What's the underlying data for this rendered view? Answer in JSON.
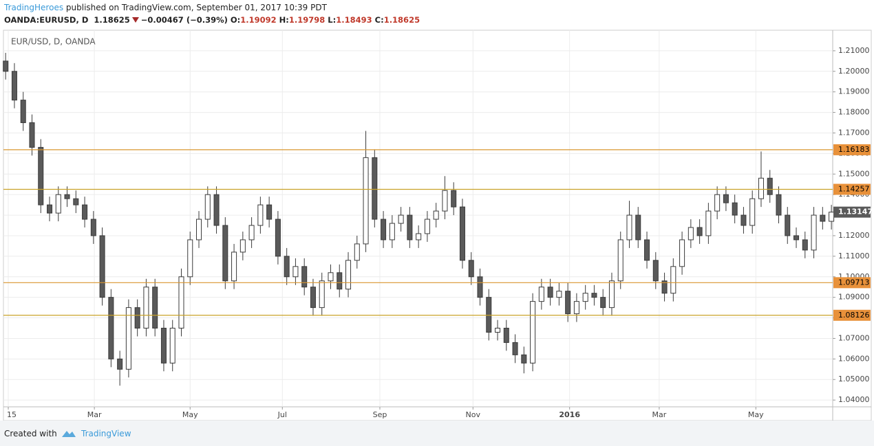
{
  "header": {
    "author": "TradingHeroes",
    "published": "published on TradingView.com, September 01, 2017 10:39 PDT",
    "symbol": "OANDA:EURUSD, D",
    "last": "1.18625",
    "change": "−0.00467 (−0.39%)",
    "ohlc": [
      {
        "label": "O:",
        "value": "1.19092"
      },
      {
        "label": "H:",
        "value": "1.19798"
      },
      {
        "label": "L:",
        "value": "1.18493"
      },
      {
        "label": "C:",
        "value": "1.18625"
      }
    ]
  },
  "footer": {
    "created": "Created with",
    "brand": "TradingView"
  },
  "chart_data": {
    "type": "candlestick",
    "title": "EUR/USD, D, OANDA",
    "open": [
      1.205,
      1.2,
      1.186,
      1.175,
      1.163,
      1.135,
      1.131,
      1.14,
      1.138,
      1.135,
      1.128,
      1.12,
      1.09,
      1.06,
      1.055,
      1.085,
      1.075,
      1.095,
      1.075,
      1.058,
      1.075,
      1.1,
      1.118,
      1.128,
      1.14,
      1.125,
      1.098,
      1.112,
      1.118,
      1.125,
      1.135,
      1.128,
      1.11,
      1.1,
      1.105,
      1.095,
      1.085,
      1.098,
      1.102,
      1.094,
      1.108,
      1.116,
      1.158,
      1.128,
      1.118,
      1.126,
      1.13,
      1.118,
      1.121,
      1.128,
      1.132,
      1.142,
      1.134,
      1.108,
      1.1,
      1.09,
      1.073,
      1.075,
      1.068,
      1.062,
      1.058,
      1.088,
      1.095,
      1.09,
      1.093,
      1.082,
      1.088,
      1.092,
      1.09,
      1.085,
      1.098,
      1.118,
      1.13,
      1.118,
      1.108,
      1.098,
      1.092,
      1.105,
      1.118,
      1.124,
      1.12,
      1.132,
      1.14,
      1.136,
      1.13,
      1.125,
      1.138,
      1.148,
      1.14,
      1.13,
      1.12,
      1.118,
      1.113,
      1.13,
      1.127
    ],
    "high": [
      1.209,
      1.204,
      1.19,
      1.179,
      1.167,
      1.139,
      1.144,
      1.144,
      1.142,
      1.139,
      1.132,
      1.124,
      1.094,
      1.064,
      1.089,
      1.089,
      1.099,
      1.099,
      1.079,
      1.079,
      1.104,
      1.122,
      1.132,
      1.144,
      1.144,
      1.129,
      1.116,
      1.122,
      1.129,
      1.139,
      1.139,
      1.132,
      1.114,
      1.109,
      1.109,
      1.099,
      1.102,
      1.106,
      1.106,
      1.112,
      1.12,
      1.171,
      1.162,
      1.132,
      1.13,
      1.134,
      1.134,
      1.125,
      1.132,
      1.136,
      1.149,
      1.146,
      1.138,
      1.112,
      1.104,
      1.094,
      1.079,
      1.079,
      1.072,
      1.066,
      1.092,
      1.099,
      1.099,
      1.097,
      1.097,
      1.092,
      1.096,
      1.096,
      1.094,
      1.102,
      1.122,
      1.137,
      1.134,
      1.122,
      1.112,
      1.102,
      1.109,
      1.122,
      1.128,
      1.128,
      1.136,
      1.144,
      1.144,
      1.14,
      1.134,
      1.142,
      1.161,
      1.152,
      1.144,
      1.134,
      1.124,
      1.122,
      1.134,
      1.134,
      1.135
    ],
    "low": [
      1.196,
      1.182,
      1.171,
      1.159,
      1.131,
      1.127,
      1.127,
      1.134,
      1.131,
      1.124,
      1.116,
      1.086,
      1.056,
      1.047,
      1.051,
      1.071,
      1.071,
      1.071,
      1.054,
      1.054,
      1.071,
      1.096,
      1.114,
      1.124,
      1.121,
      1.094,
      1.094,
      1.108,
      1.114,
      1.121,
      1.124,
      1.106,
      1.096,
      1.096,
      1.091,
      1.081,
      1.081,
      1.094,
      1.09,
      1.09,
      1.104,
      1.112,
      1.124,
      1.114,
      1.114,
      1.122,
      1.114,
      1.114,
      1.117,
      1.124,
      1.128,
      1.13,
      1.104,
      1.096,
      1.086,
      1.069,
      1.069,
      1.064,
      1.058,
      1.053,
      1.054,
      1.084,
      1.086,
      1.086,
      1.078,
      1.078,
      1.084,
      1.086,
      1.081,
      1.081,
      1.094,
      1.114,
      1.114,
      1.104,
      1.094,
      1.088,
      1.088,
      1.101,
      1.114,
      1.116,
      1.116,
      1.128,
      1.132,
      1.126,
      1.121,
      1.121,
      1.134,
      1.136,
      1.126,
      1.116,
      1.114,
      1.109,
      1.109,
      1.123,
      1.123
    ],
    "close": [
      1.2,
      1.186,
      1.175,
      1.163,
      1.135,
      1.131,
      1.14,
      1.138,
      1.135,
      1.128,
      1.12,
      1.09,
      1.06,
      1.055,
      1.085,
      1.075,
      1.095,
      1.075,
      1.058,
      1.075,
      1.1,
      1.118,
      1.128,
      1.14,
      1.125,
      1.098,
      1.112,
      1.118,
      1.125,
      1.135,
      1.128,
      1.11,
      1.1,
      1.105,
      1.095,
      1.085,
      1.098,
      1.102,
      1.094,
      1.108,
      1.116,
      1.158,
      1.128,
      1.118,
      1.126,
      1.13,
      1.118,
      1.121,
      1.128,
      1.132,
      1.142,
      1.134,
      1.108,
      1.1,
      1.09,
      1.073,
      1.075,
      1.068,
      1.062,
      1.058,
      1.088,
      1.095,
      1.09,
      1.093,
      1.082,
      1.088,
      1.092,
      1.09,
      1.085,
      1.098,
      1.118,
      1.13,
      1.118,
      1.108,
      1.098,
      1.092,
      1.105,
      1.118,
      1.124,
      1.12,
      1.132,
      1.14,
      1.136,
      1.13,
      1.125,
      1.138,
      1.148,
      1.14,
      1.13,
      1.12,
      1.118,
      1.113,
      1.13,
      1.127,
      1.13147
    ],
    "up_color": "#ffffff",
    "down_color": "#5a5a5a",
    "outline": "#3a3a3a",
    "xlim": [
      -0.25,
      94.15
    ],
    "xticks": [
      {
        "value": 0.3,
        "label": "15"
      },
      {
        "value": 10.1,
        "label": "Mar"
      },
      {
        "value": 21.0,
        "label": "May"
      },
      {
        "value": 31.5,
        "label": "Jul"
      },
      {
        "value": 42.6,
        "label": "Sep"
      },
      {
        "value": 53.2,
        "label": "Nov"
      },
      {
        "value": 64.2,
        "label": "2016"
      },
      {
        "value": 74.4,
        "label": "Mar"
      },
      {
        "value": 85.4,
        "label": "May"
      }
    ],
    "ylim": [
      1.0367,
      1.22
    ],
    "yticks": [
      {
        "value": 1.04,
        "label": "1.04000"
      },
      {
        "value": 1.05,
        "label": "1.05000"
      },
      {
        "value": 1.06,
        "label": "1.06000"
      },
      {
        "value": 1.07,
        "label": "1.07000"
      },
      {
        "value": 1.08,
        "label": "1.08000"
      },
      {
        "value": 1.09,
        "label": "1.09000"
      },
      {
        "value": 1.1,
        "label": "1.10000"
      },
      {
        "value": 1.11,
        "label": "1.11000"
      },
      {
        "value": 1.12,
        "label": "1.12000"
      },
      {
        "value": 1.13,
        "label": "1.13000"
      },
      {
        "value": 1.14,
        "label": "1.14000"
      },
      {
        "value": 1.15,
        "label": "1.15000"
      },
      {
        "value": 1.16,
        "label": "1.16000"
      },
      {
        "value": 1.17,
        "label": "1.17000"
      },
      {
        "value": 1.18,
        "label": "1.18000"
      },
      {
        "value": 1.19,
        "label": "1.19000"
      },
      {
        "value": 1.2,
        "label": "1.20000"
      },
      {
        "value": 1.21,
        "label": "1.21000"
      }
    ],
    "grid": true,
    "hlines": [
      {
        "value": 1.16183,
        "color": "#d9962e"
      },
      {
        "value": 1.14257,
        "color": "#c9a227"
      },
      {
        "value": 1.09713,
        "color": "#d9962e"
      },
      {
        "value": 1.08126,
        "color": "#c9a227"
      }
    ],
    "hline_label_color": "#e8913a",
    "last_price_color": "#5a5a5a"
  }
}
